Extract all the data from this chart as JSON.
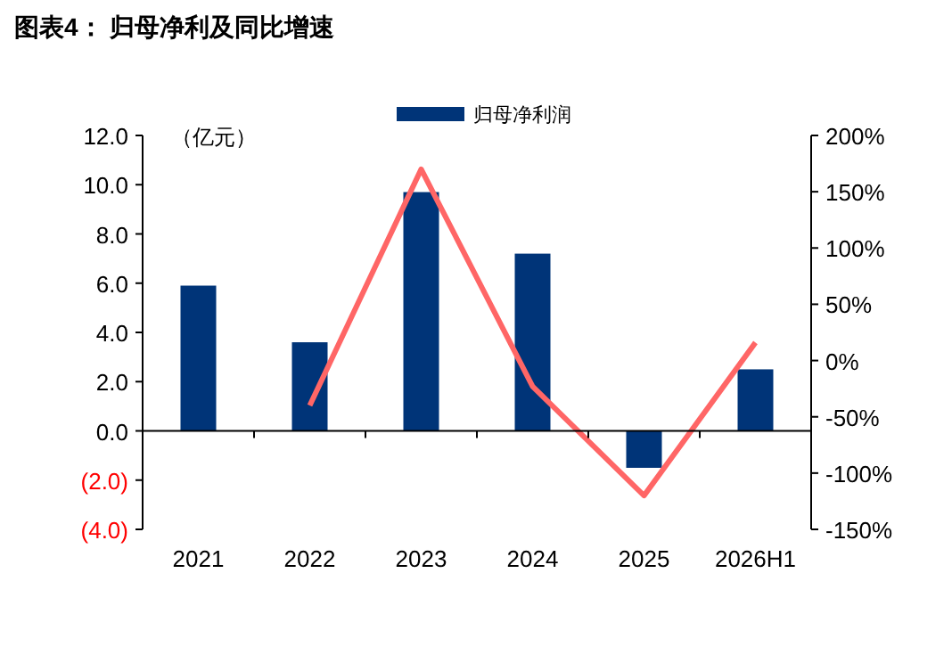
{
  "chart_data": {
    "type": "bar",
    "title": "图表4：  归母净利及同比增速",
    "ylabel": "（亿元）",
    "categories": [
      "2021",
      "2022",
      "2023",
      "2024",
      "2025",
      "2026H1"
    ],
    "series": [
      {
        "name": "归母净利润",
        "color": "#003478",
        "values": [
          5.9,
          3.6,
          9.7,
          7.2,
          -1.5,
          2.5
        ]
      },
      {
        "type": "line",
        "axis": "y2",
        "color": "#ff6666",
        "values": [
          null,
          -40,
          170,
          -23,
          -120,
          16
        ]
      }
    ],
    "ylim": [
      -4,
      12
    ],
    "yticks": [
      {
        "value": -4,
        "label": "(4.0)"
      },
      {
        "value": -2,
        "label": "(2.0)"
      },
      {
        "value": 0,
        "label": "0.0"
      },
      {
        "value": 2,
        "label": "2.0"
      },
      {
        "value": 4,
        "label": "4.0"
      },
      {
        "value": 6,
        "label": "6.0"
      },
      {
        "value": 8,
        "label": "8.0"
      },
      {
        "value": 10,
        "label": "10.0"
      },
      {
        "value": 12,
        "label": "12.0"
      }
    ],
    "y2lim": [
      -150,
      200
    ],
    "y2ticks": [
      {
        "value": -150,
        "label": "-150%"
      },
      {
        "value": -100,
        "label": "-100%"
      },
      {
        "value": -50,
        "label": "-50%"
      },
      {
        "value": 0,
        "label": "0%"
      },
      {
        "value": 50,
        "label": "50%"
      },
      {
        "value": 100,
        "label": "100%"
      },
      {
        "value": 150,
        "label": "150%"
      },
      {
        "value": 200,
        "label": "200%"
      }
    ],
    "legend": "top"
  }
}
